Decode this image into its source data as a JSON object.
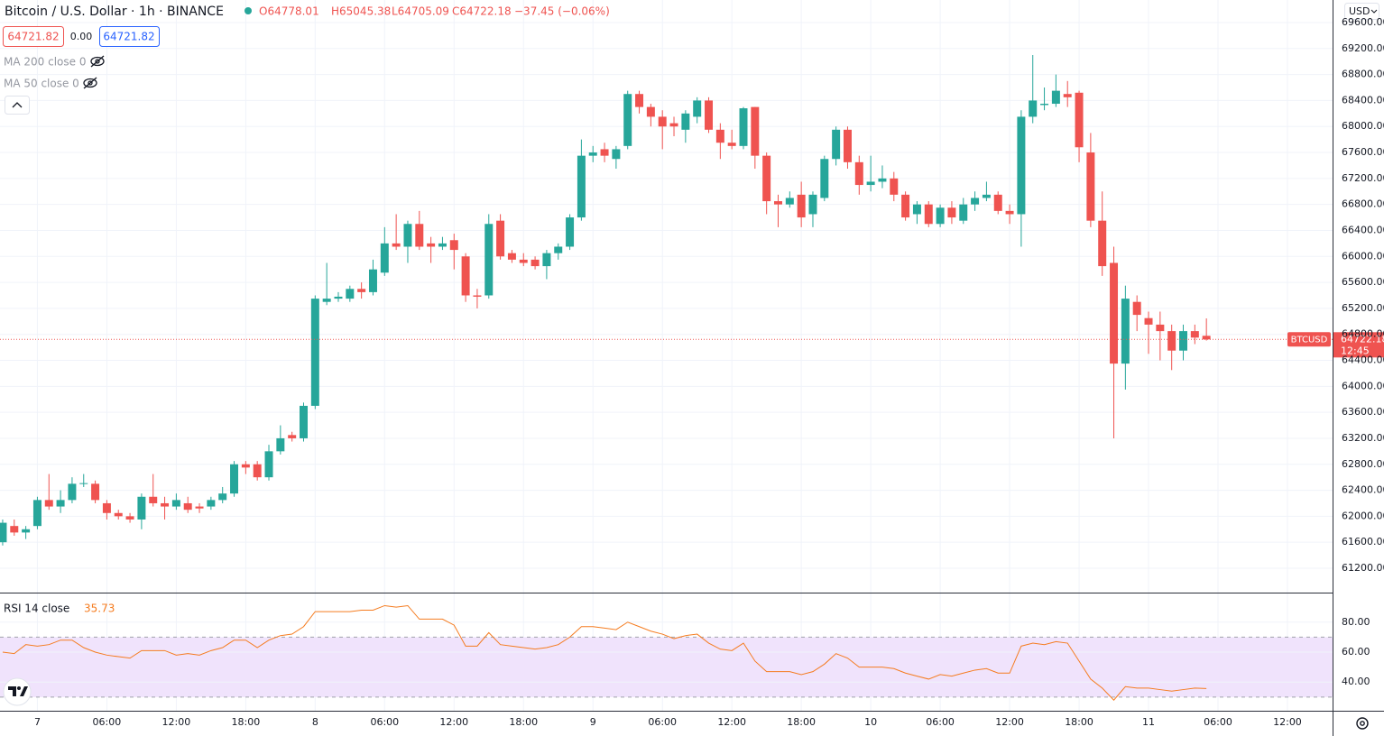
{
  "header": {
    "title": "Bitcoin / U.S. Dollar · 1h · BINANCE",
    "ohlc": [
      "O64778.01",
      "H65045.38",
      "L64705.09",
      "C64722.18"
    ],
    "change": "−37.45 (−0.06%)",
    "bid": "64721.82",
    "spread": "0.00",
    "ask": "64721.82",
    "indicators": [
      "MA 200 close 0",
      "MA 50 close 0"
    ],
    "currency": "USD",
    "symbol": "BTCUSD",
    "countdown": "12:45"
  },
  "chart_data": [
    {
      "type": "candlestick",
      "up_color": "#26a69a",
      "down_color": "#ef5350",
      "grid": true,
      "xlim": [
        -0.23,
        114.9
      ],
      "xticks": [
        {
          "value": 3,
          "label": "7"
        },
        {
          "value": 9,
          "label": "06:00"
        },
        {
          "value": 15,
          "label": "12:00"
        },
        {
          "value": 21,
          "label": "18:00"
        },
        {
          "value": 27,
          "label": "8"
        },
        {
          "value": 33,
          "label": "06:00"
        },
        {
          "value": 39,
          "label": "12:00"
        },
        {
          "value": 45,
          "label": "18:00"
        },
        {
          "value": 51,
          "label": "9"
        },
        {
          "value": 57,
          "label": "06:00"
        },
        {
          "value": 63,
          "label": "12:00"
        },
        {
          "value": 69,
          "label": "18:00"
        },
        {
          "value": 75,
          "label": "10"
        },
        {
          "value": 81,
          "label": "06:00"
        },
        {
          "value": 87,
          "label": "12:00"
        },
        {
          "value": 93,
          "label": "18:00"
        },
        {
          "value": 99,
          "label": "11"
        },
        {
          "value": 105,
          "label": "06:00"
        },
        {
          "value": 111,
          "label": "12:00"
        }
      ],
      "ylim": [
        60825,
        69947
      ],
      "yticks": [
        {
          "value": 61200,
          "label": "61200.00"
        },
        {
          "value": 61600,
          "label": "61600.00"
        },
        {
          "value": 62000,
          "label": "62000.00"
        },
        {
          "value": 62400,
          "label": "62400.00"
        },
        {
          "value": 62800,
          "label": "62800.00"
        },
        {
          "value": 63200,
          "label": "63200.00"
        },
        {
          "value": 63600,
          "label": "63600.00"
        },
        {
          "value": 64000,
          "label": "64000.00"
        },
        {
          "value": 64400,
          "label": "64400.00"
        },
        {
          "value": 64800,
          "label": "64800.00"
        },
        {
          "value": 65200,
          "label": "65200.00"
        },
        {
          "value": 65600,
          "label": "65600.00"
        },
        {
          "value": 66000,
          "label": "66000.00"
        },
        {
          "value": 66400,
          "label": "66400.00"
        },
        {
          "value": 66800,
          "label": "66800.00"
        },
        {
          "value": 67200,
          "label": "67200.00"
        },
        {
          "value": 67600,
          "label": "67600.00"
        },
        {
          "value": 68000,
          "label": "68000.00"
        },
        {
          "value": 68400,
          "label": "68400.00"
        },
        {
          "value": 68800,
          "label": "68800.00"
        },
        {
          "value": 69200,
          "label": "69200.00"
        },
        {
          "value": 69600,
          "label": "69600.00"
        }
      ],
      "open": [
        61600,
        61850,
        61750,
        61850,
        62250,
        62150,
        62250,
        62500,
        62500,
        62200,
        62050,
        62000,
        61950,
        62300,
        62200,
        62150,
        62200,
        62150,
        62150,
        62250,
        62350,
        62800,
        62800,
        62600,
        63000,
        63250,
        63200,
        63700,
        65300,
        65350,
        65350,
        65500,
        65450,
        65750,
        66200,
        66150,
        66500,
        66200,
        66150,
        66250,
        66000,
        65400,
        65400,
        66550,
        66050,
        65950,
        65950,
        65850,
        66050,
        66150,
        66600,
        67550,
        67650,
        67500,
        67700,
        68500,
        68300,
        68150,
        68050,
        67950,
        68150,
        68400,
        67950,
        67750,
        67700,
        68300,
        67550,
        66850,
        66800,
        66950,
        66650,
        66900,
        67500,
        67950,
        67450,
        67100,
        67150,
        67200,
        66950,
        66650,
        66800,
        66500,
        66750,
        66550,
        66800,
        66900,
        66950,
        66700,
        66650,
        68150,
        68330,
        68350,
        68500,
        68520,
        67600,
        66550,
        65900,
        64350,
        65300,
        65050,
        64950,
        64850,
        64550,
        64850,
        64778.01
      ],
      "high": [
        61950,
        61950,
        61850,
        62300,
        62650,
        62400,
        62600,
        62650,
        62550,
        62250,
        62100,
        62050,
        62350,
        62650,
        62300,
        62350,
        62300,
        62200,
        62300,
        62450,
        62850,
        62850,
        62850,
        63100,
        63400,
        63300,
        63750,
        65400,
        65900,
        65450,
        65550,
        65600,
        65950,
        66450,
        66650,
        66550,
        66700,
        66300,
        66300,
        66350,
        66050,
        65500,
        66650,
        66650,
        66100,
        66050,
        66000,
        66100,
        66200,
        66650,
        67800,
        67700,
        67750,
        67700,
        68550,
        68550,
        68350,
        68250,
        68150,
        68250,
        68450,
        68450,
        68050,
        67950,
        68300,
        68300,
        67600,
        66950,
        67000,
        67150,
        67000,
        67550,
        68000,
        68000,
        67550,
        67550,
        67400,
        67300,
        67000,
        66850,
        66850,
        66800,
        66850,
        66900,
        67000,
        67150,
        67000,
        66800,
        68250,
        69100,
        68600,
        68800,
        68700,
        68550,
        67900,
        67000,
        66150,
        65550,
        65400,
        65150,
        65150,
        64950,
        64950,
        64950,
        65045.38
      ],
      "low": [
        61550,
        61700,
        61650,
        61800,
        62100,
        62050,
        62200,
        62450,
        62200,
        61950,
        61950,
        61900,
        61800,
        62150,
        61950,
        62100,
        62050,
        62050,
        62100,
        62200,
        62300,
        62650,
        62550,
        62550,
        62950,
        63150,
        63150,
        63650,
        65250,
        65300,
        65300,
        65350,
        65400,
        65700,
        66100,
        65900,
        66100,
        65900,
        66100,
        65800,
        65300,
        65200,
        65350,
        65950,
        65900,
        65850,
        65800,
        65650,
        65950,
        66100,
        66550,
        67450,
        67450,
        67350,
        67650,
        68200,
        68000,
        67650,
        67850,
        67750,
        68050,
        67900,
        67500,
        67650,
        67650,
        67350,
        66650,
        66450,
        66750,
        66450,
        66450,
        66850,
        67400,
        67350,
        66950,
        67000,
        67050,
        66850,
        66550,
        66500,
        66450,
        66450,
        66500,
        66500,
        66700,
        66850,
        66650,
        66500,
        66150,
        68050,
        68250,
        68300,
        68300,
        67450,
        66450,
        65700,
        63200,
        63950,
        64850,
        64500,
        64400,
        64250,
        64400,
        64650,
        64705.09
      ],
      "close": [
        61900,
        61750,
        61800,
        62250,
        62150,
        62250,
        62500,
        62510,
        62250,
        62050,
        62000,
        61950,
        62300,
        62200,
        62150,
        62250,
        62100,
        62120,
        62250,
        62350,
        62800,
        62750,
        62600,
        63000,
        63200,
        63200,
        63700,
        65350,
        65350,
        65380,
        65500,
        65450,
        65800,
        66200,
        66150,
        66500,
        66150,
        66150,
        66200,
        66100,
        65400,
        65380,
        66500,
        66000,
        65950,
        65900,
        65850,
        66050,
        66150,
        66600,
        67550,
        67600,
        67550,
        67650,
        68500,
        68300,
        68150,
        68000,
        68000,
        68200,
        68400,
        67950,
        67750,
        67700,
        68280,
        67550,
        66850,
        66800,
        66900,
        66600,
        66950,
        67500,
        67950,
        67450,
        67100,
        67150,
        67200,
        66950,
        66600,
        66800,
        66500,
        66750,
        66600,
        66800,
        66900,
        66950,
        66700,
        66650,
        68150,
        68400,
        68350,
        68550,
        68450,
        67680,
        66550,
        65850,
        64350,
        65350,
        65100,
        64950,
        64850,
        64550,
        64850,
        64750,
        64722.18
      ]
    },
    {
      "type": "line",
      "name": "RSI 14 close",
      "color": "#f57c20",
      "band_color": "#f0e3fc",
      "bands": [
        30,
        70
      ],
      "ylim": [
        20.9,
        99.1
      ],
      "yticks": [
        {
          "value": 80,
          "label": "80.00"
        },
        {
          "value": 60,
          "label": "60.00"
        },
        {
          "value": 40,
          "label": "40.00"
        }
      ],
      "values": [
        60,
        59,
        65,
        64,
        65,
        68,
        68,
        63,
        60,
        58,
        57,
        56,
        61,
        61,
        61,
        58,
        59,
        58,
        61,
        63,
        68,
        68,
        63,
        68,
        71,
        72,
        77,
        87,
        87,
        87,
        87,
        88,
        88,
        91,
        90,
        91,
        82,
        82,
        82,
        78,
        64,
        64,
        73,
        65,
        64,
        63,
        62,
        63,
        65,
        70,
        77,
        77,
        76,
        75,
        80,
        77,
        74,
        72,
        69,
        71,
        72,
        66,
        62,
        61,
        66,
        54,
        47,
        47,
        47,
        45,
        47,
        52,
        59,
        56,
        50,
        50,
        50,
        49,
        46,
        44,
        42,
        45,
        44,
        46,
        48,
        49,
        46,
        46,
        64,
        66,
        65,
        67,
        66,
        54,
        42,
        36,
        28,
        37,
        36,
        36,
        35,
        34,
        35,
        36,
        35.73
      ]
    }
  ]
}
